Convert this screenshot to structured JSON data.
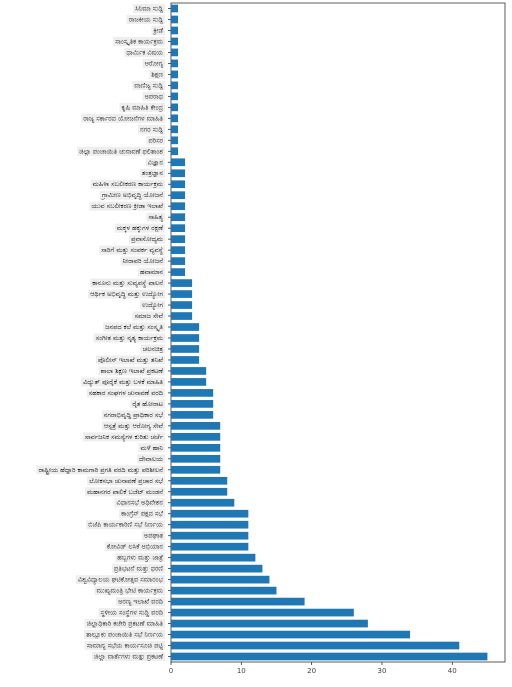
{
  "chart_data": {
    "type": "barh",
    "color": "#1f77b4",
    "categories": [
      "ಸಿನಿಮಾ ಸುದ್ದಿ",
      "ರಾಜಕೀಯ ಸುದ್ದಿ",
      "ಕ್ರೀಡೆ",
      "ಸಾಂಸ್ಕೃತಿಕ ಕಾರ್ಯಕ್ರಮ",
      "ಧಾರ್ಮಿಕ ವಿಷಯ",
      "ಆರೋಗ್ಯ",
      "ಶಿಕ್ಷಣ",
      "ವಾಣಿಜ್ಯ ಸುದ್ದಿ",
      "ಅಪರಾಧ",
      "ಕೃಷಿ ಮಾಹಿತಿ ಕೇಂದ್ರ",
      "ರಾಜ್ಯ ಸರ್ಕಾರದ ಯೋಜನೆಗಳ ಮಾಹಿತಿ",
      "ನಗರ ಸುದ್ದಿ",
      "ಪರಿಸರ",
      "ಜಿಲ್ಲಾ ಪಂಚಾಯಿತಿ ಚುನಾವಣೆ ಫಲಿತಾಂಶ",
      "ವಿಜ್ಞಾನ",
      "ತಂತ್ರಜ್ಞಾನ",
      "ಮಹಿಳಾ ಸಬಲೀಕರಣ ಕಾರ್ಯಕ್ರಮ",
      "ಗ್ರಾಮೀಣ ಅಭಿವೃದ್ಧಿ ಯೋಜನೆ",
      "ಯುವ ಸಬಲೀಕರಣ ಕ್ರೀಡಾ ಇಲಾಖೆ",
      "ಸಾಹಿತ್ಯ",
      "ಮಕ್ಕಳ ಹಕ್ಕುಗಳ ರಕ್ಷಣೆ",
      "ಪ್ರವಾಸೋದ್ಯಮ",
      "ಸಾರಿಗೆ ಮತ್ತು ಸಂಪರ್ಕ ವ್ಯವಸ್ಥೆ",
      "ನೀರಾವರಿ ಯೋಜನೆ",
      "ಹವಾಮಾನ",
      "ಕಾನೂನು ಮತ್ತು ಸುವ್ಯವಸ್ಥೆ ಪಾಲನೆ",
      "ಆರ್ಥಿಕ ಅಭಿವೃದ್ಧಿ ಮತ್ತು ಉದ್ಯೋಗ",
      "ಉದ್ಯೋಗ",
      "ಸಮಾಜ ಸೇವೆ",
      "ಜನಪದ ಕಲೆ ಮತ್ತು ಸಂಸ್ಕೃತಿ",
      "ಸಂಗೀತ ಮತ್ತು ನೃತ್ಯ ಕಾರ್ಯಕ್ರಮ",
      "ಚಲನಚಿತ್ರ",
      "ಪೊಲೀಸ್ ಇಲಾಖೆ ಮತ್ತು ತನಿಖೆ",
      "ಶಾಲಾ ಶಿಕ್ಷಣ ಇಲಾಖೆ ಪ್ರಕಟಣೆ",
      "ವಿದ್ಯುತ್ ಪೂರೈಕೆ ಮತ್ತು ಬಳಕೆ ಮಾಹಿತಿ",
      "ಸಹಕಾರ ಸಂಘಗಳ ಚುನಾವಣೆ ವರದಿ",
      "ರೈತ ಹೋರಾಟ",
      "ನಗರಾಭಿವೃದ್ಧಿ ಪ್ರಾಧಿಕಾರ ಸಭೆ",
      "ಆಸ್ಪತ್ರೆ ಮತ್ತು ಆರೋಗ್ಯ ಸೇವೆ",
      "ಸಾರ್ವಜನಿಕ ಸಮಸ್ಯೆಗಳ ಕುರಿತು ಚರ್ಚೆ",
      "ಮಳೆ ಹಾನಿ",
      "ದೇವಾಲಯ",
      "ರಾಷ್ಟ್ರೀಯ ಹೆದ್ದಾರಿ ಕಾಮಗಾರಿ ಪ್ರಗತಿ ವರದಿ ಮತ್ತು ಪರಿಶೀಲನೆ",
      "ಲೋಕಸಭಾ ಚುನಾವಣೆ ಪ್ರಚಾರ ಸಭೆ",
      "ಮಹಾನಗರ ಪಾಲಿಕೆ ಬಜೆಟ್ ಮಂಡನೆ",
      "ವಿಧಾನಸಭೆ ಅಧಿವೇಶನ",
      "ಕಾಂಗ್ರೆಸ್ ಪಕ್ಷದ ಸಭೆ",
      "ಬಿಜೆಪಿ ಕಾರ್ಯಕಾರಿಣಿ ಸಭೆ ನಿರ್ಣಯ",
      "ಅಪಘಾತ",
      "ಕೋವಿಡ್ ಲಸಿಕೆ ಅಭಿಯಾನ",
      "ಹಬ್ಬಗಳು ಮತ್ತು ಜಾತ್ರೆ",
      "ಪ್ರತಿಭಟನೆ ಮತ್ತು ಧರಣಿ",
      "ವಿಶ್ವವಿದ್ಯಾಲಯ ಘಟಿಕೋತ್ಸವ ಸಮಾರಂಭ",
      "ಮುಖ್ಯಮಂತ್ರಿ ಭೇಟಿ ಕಾರ್ಯಕ್ರಮ",
      "ಅರಣ್ಯ ಇಲಾಖೆ ವರದಿ",
      "ಸ್ಥಳೀಯ ಸಂಸ್ಥೆಗಳ ಸುದ್ದಿ ವರದಿ",
      "ಜಿಲ್ಲಾಧಿಕಾರಿ ಕಚೇರಿ ಪ್ರಕಟಣೆ ಮಾಹಿತಿ",
      "ತಾಲ್ಲೂಕು ಪಂಚಾಯಿತಿ ಸಭೆ ನಿರ್ಣಯ",
      "ಸಾಮಾನ್ಯ ಸಭೆಯ ಕಾರ್ಯಸೂಚಿ ಪಟ್ಟಿ",
      "ಜಿಲ್ಲಾ ವಾರ್ತೆಗಳು ಮತ್ತು ಪ್ರಕಟಣೆ"
    ],
    "values": [
      1,
      1,
      1,
      1,
      1,
      1,
      1,
      1,
      1,
      1,
      1,
      1,
      1,
      1,
      2,
      2,
      2,
      2,
      2,
      2,
      2,
      2,
      2,
      2,
      2,
      3,
      3,
      3,
      3,
      4,
      4,
      4,
      4,
      5,
      5,
      6,
      6,
      6,
      7,
      7,
      7,
      7,
      7,
      8,
      8,
      9,
      11,
      11,
      11,
      11,
      12,
      13,
      14,
      15,
      19,
      26,
      28,
      34,
      41,
      45
    ],
    "xlim": [
      0,
      47.5
    ],
    "xticks": [
      0,
      10,
      20,
      30,
      40
    ]
  }
}
